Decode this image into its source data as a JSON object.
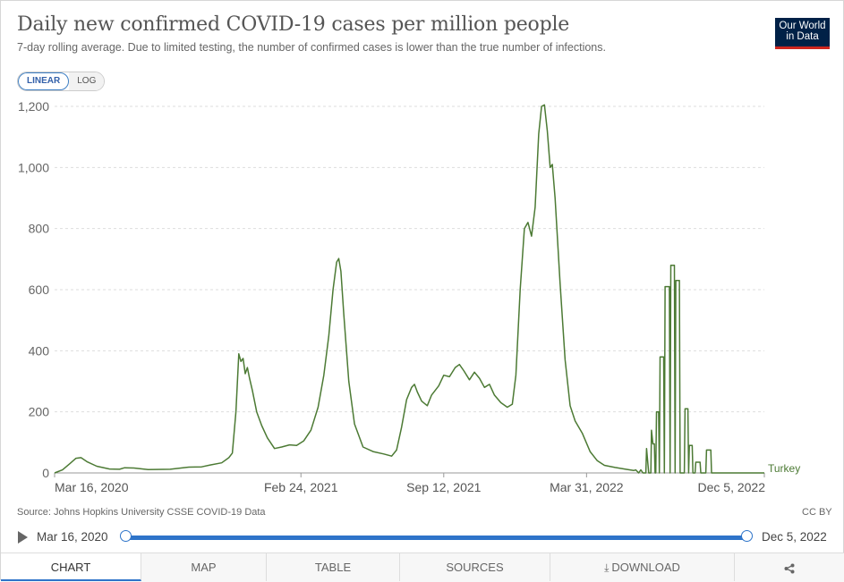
{
  "header": {
    "title": "Daily new confirmed COVID-19 cases per million people",
    "subtitle": "7-day rolling average. Due to limited testing, the number of confirmed cases is lower than the true number of infections.",
    "logo_line1": "Our World",
    "logo_line2": "in Data"
  },
  "scale_toggle": {
    "linear": "LINEAR",
    "log": "LOG",
    "selected": "LINEAR"
  },
  "chart_data": {
    "type": "line",
    "title": "Daily new confirmed COVID-19 cases per million people",
    "subtitle": "7-day rolling average. Due to limited testing, the number of confirmed cases is lower than the true number of infections.",
    "ylim": [
      0,
      1200
    ],
    "yticks": [
      0,
      200,
      400,
      600,
      800,
      1000,
      1200
    ],
    "ytick_labels": [
      "0",
      "200",
      "400",
      "600",
      "800",
      "1,000",
      "1,200"
    ],
    "xlim": [
      "2020-03-16",
      "2022-12-05"
    ],
    "xticks": [
      "2020-03-16",
      "2021-02-24",
      "2021-09-12",
      "2022-03-31",
      "2022-12-05"
    ],
    "xtick_labels": [
      "Mar 16, 2020",
      "Feb 24, 2021",
      "Sep 12, 2021",
      "Mar 31, 2022",
      "Dec 5, 2022"
    ],
    "grid": "horizontal dashed",
    "line_color": "#4c7a34",
    "series": [
      {
        "name": "Turkey",
        "points": [
          [
            "2020-03-16",
            0
          ],
          [
            "2020-03-27",
            10
          ],
          [
            "2020-04-06",
            30
          ],
          [
            "2020-04-15",
            48
          ],
          [
            "2020-04-22",
            50
          ],
          [
            "2020-05-01",
            36
          ],
          [
            "2020-05-14",
            22
          ],
          [
            "2020-06-01",
            13
          ],
          [
            "2020-06-15",
            12
          ],
          [
            "2020-06-22",
            17
          ],
          [
            "2020-07-05",
            16
          ],
          [
            "2020-07-25",
            11
          ],
          [
            "2020-08-25",
            12
          ],
          [
            "2020-09-20",
            19
          ],
          [
            "2020-10-08",
            20
          ],
          [
            "2020-10-20",
            26
          ],
          [
            "2020-11-05",
            33
          ],
          [
            "2020-11-15",
            50
          ],
          [
            "2020-11-20",
            65
          ],
          [
            "2020-11-25",
            200
          ],
          [
            "2020-11-29",
            390
          ],
          [
            "2020-12-02",
            365
          ],
          [
            "2020-12-05",
            375
          ],
          [
            "2020-12-08",
            325
          ],
          [
            "2020-12-11",
            345
          ],
          [
            "2020-12-14",
            310
          ],
          [
            "2020-12-18",
            270
          ],
          [
            "2020-12-24",
            200
          ],
          [
            "2020-12-31",
            155
          ],
          [
            "2021-01-08",
            115
          ],
          [
            "2021-01-18",
            80
          ],
          [
            "2021-01-28",
            85
          ],
          [
            "2021-02-08",
            92
          ],
          [
            "2021-02-18",
            90
          ],
          [
            "2021-02-28",
            105
          ],
          [
            "2021-03-10",
            140
          ],
          [
            "2021-03-20",
            215
          ],
          [
            "2021-03-28",
            320
          ],
          [
            "2021-04-04",
            450
          ],
          [
            "2021-04-10",
            600
          ],
          [
            "2021-04-15",
            690
          ],
          [
            "2021-04-18",
            702
          ],
          [
            "2021-04-21",
            660
          ],
          [
            "2021-04-25",
            520
          ],
          [
            "2021-05-02",
            300
          ],
          [
            "2021-05-10",
            160
          ],
          [
            "2021-05-22",
            85
          ],
          [
            "2021-06-05",
            70
          ],
          [
            "2021-06-20",
            62
          ],
          [
            "2021-07-01",
            55
          ],
          [
            "2021-07-08",
            75
          ],
          [
            "2021-07-15",
            150
          ],
          [
            "2021-07-22",
            240
          ],
          [
            "2021-07-29",
            280
          ],
          [
            "2021-08-02",
            290
          ],
          [
            "2021-08-06",
            265
          ],
          [
            "2021-08-12",
            235
          ],
          [
            "2021-08-20",
            220
          ],
          [
            "2021-08-26",
            255
          ],
          [
            "2021-09-05",
            285
          ],
          [
            "2021-09-12",
            320
          ],
          [
            "2021-09-20",
            315
          ],
          [
            "2021-09-28",
            345
          ],
          [
            "2021-10-04",
            355
          ],
          [
            "2021-10-10",
            335
          ],
          [
            "2021-10-18",
            305
          ],
          [
            "2021-10-25",
            330
          ],
          [
            "2021-11-01",
            310
          ],
          [
            "2021-11-08",
            280
          ],
          [
            "2021-11-15",
            290
          ],
          [
            "2021-11-22",
            255
          ],
          [
            "2021-12-01",
            230
          ],
          [
            "2021-12-10",
            215
          ],
          [
            "2021-12-17",
            225
          ],
          [
            "2021-12-22",
            320
          ],
          [
            "2021-12-28",
            600
          ],
          [
            "2022-01-03",
            800
          ],
          [
            "2022-01-08",
            820
          ],
          [
            "2022-01-13",
            775
          ],
          [
            "2022-01-18",
            870
          ],
          [
            "2022-01-23",
            1110
          ],
          [
            "2022-01-27",
            1200
          ],
          [
            "2022-01-31",
            1205
          ],
          [
            "2022-02-04",
            1120
          ],
          [
            "2022-02-08",
            1000
          ],
          [
            "2022-02-11",
            1010
          ],
          [
            "2022-02-15",
            900
          ],
          [
            "2022-02-22",
            620
          ],
          [
            "2022-03-01",
            370
          ],
          [
            "2022-03-08",
            220
          ],
          [
            "2022-03-15",
            170
          ],
          [
            "2022-03-25",
            130
          ],
          [
            "2022-04-05",
            70
          ],
          [
            "2022-04-15",
            40
          ],
          [
            "2022-04-25",
            25
          ],
          [
            "2022-05-10",
            18
          ],
          [
            "2022-05-25",
            12
          ],
          [
            "2022-06-05",
            8
          ],
          [
            "2022-06-08",
            10
          ],
          [
            "2022-06-12",
            0
          ],
          [
            "2022-06-15",
            10
          ],
          [
            "2022-06-18",
            0
          ],
          [
            "2022-06-22",
            0
          ],
          [
            "2022-06-23",
            80
          ],
          [
            "2022-06-26",
            0
          ],
          [
            "2022-06-29",
            0
          ],
          [
            "2022-06-30",
            140
          ],
          [
            "2022-07-02",
            95
          ],
          [
            "2022-07-04",
            95
          ],
          [
            "2022-07-05",
            0
          ],
          [
            "2022-07-06",
            0
          ],
          [
            "2022-07-07",
            200
          ],
          [
            "2022-07-10",
            200
          ],
          [
            "2022-07-11",
            0
          ],
          [
            "2022-07-12",
            380
          ],
          [
            "2022-07-17",
            380
          ],
          [
            "2022-07-18",
            0
          ],
          [
            "2022-07-19",
            610
          ],
          [
            "2022-07-25",
            610
          ],
          [
            "2022-07-26",
            0
          ],
          [
            "2022-07-27",
            680
          ],
          [
            "2022-08-01",
            680
          ],
          [
            "2022-08-02",
            0
          ],
          [
            "2022-08-03",
            630
          ],
          [
            "2022-08-08",
            630
          ],
          [
            "2022-08-09",
            0
          ],
          [
            "2022-08-15",
            0
          ],
          [
            "2022-08-16",
            210
          ],
          [
            "2022-08-20",
            210
          ],
          [
            "2022-08-21",
            0
          ],
          [
            "2022-08-22",
            90
          ],
          [
            "2022-08-26",
            90
          ],
          [
            "2022-08-27",
            0
          ],
          [
            "2022-08-30",
            0
          ],
          [
            "2022-08-31",
            35
          ],
          [
            "2022-09-06",
            35
          ],
          [
            "2022-09-07",
            0
          ],
          [
            "2022-09-14",
            0
          ],
          [
            "2022-09-15",
            75
          ],
          [
            "2022-09-21",
            75
          ],
          [
            "2022-09-22",
            0
          ],
          [
            "2022-12-05",
            0
          ]
        ]
      }
    ]
  },
  "footer": {
    "source": "Source: Johns Hopkins University CSSE COVID-19 Data",
    "license": "CC BY"
  },
  "timeline": {
    "start_label": "Mar 16, 2020",
    "end_label": "Dec 5, 2022"
  },
  "tabs": [
    {
      "label": "CHART",
      "active": true
    },
    {
      "label": "MAP"
    },
    {
      "label": "TABLE"
    },
    {
      "label": "SOURCES"
    },
    {
      "label": "DOWNLOAD",
      "icon": "download-icon"
    },
    {
      "label": "",
      "icon": "share-icon"
    }
  ]
}
